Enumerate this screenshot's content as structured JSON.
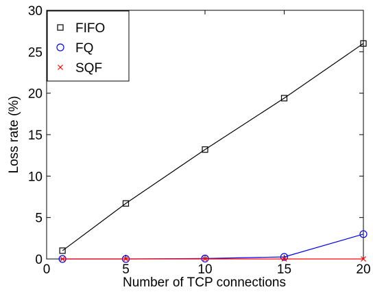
{
  "chart_data": {
    "type": "line",
    "xlabel": "Number of TCP connections",
    "ylabel": "Loss rate (%)",
    "xlim": [
      0,
      20
    ],
    "ylim": [
      0,
      30
    ],
    "xticks": [
      0,
      5,
      10,
      15,
      20
    ],
    "yticks": [
      0,
      5,
      10,
      15,
      20,
      25,
      30
    ],
    "x": [
      1,
      5,
      10,
      15,
      20
    ],
    "grid": false,
    "legend_position": "top-left",
    "series": [
      {
        "name": "FIFO",
        "values": [
          1.0,
          6.7,
          13.2,
          19.4,
          26.0
        ],
        "color": "#000000",
        "marker": "square"
      },
      {
        "name": "FQ",
        "values": [
          0.0,
          0.0,
          0.05,
          0.25,
          3.0
        ],
        "color": "#0000ff",
        "marker": "circle"
      },
      {
        "name": "SQF",
        "values": [
          0.0,
          0.0,
          0.0,
          0.0,
          0.0
        ],
        "color": "#ff0000",
        "marker": "x"
      }
    ]
  }
}
